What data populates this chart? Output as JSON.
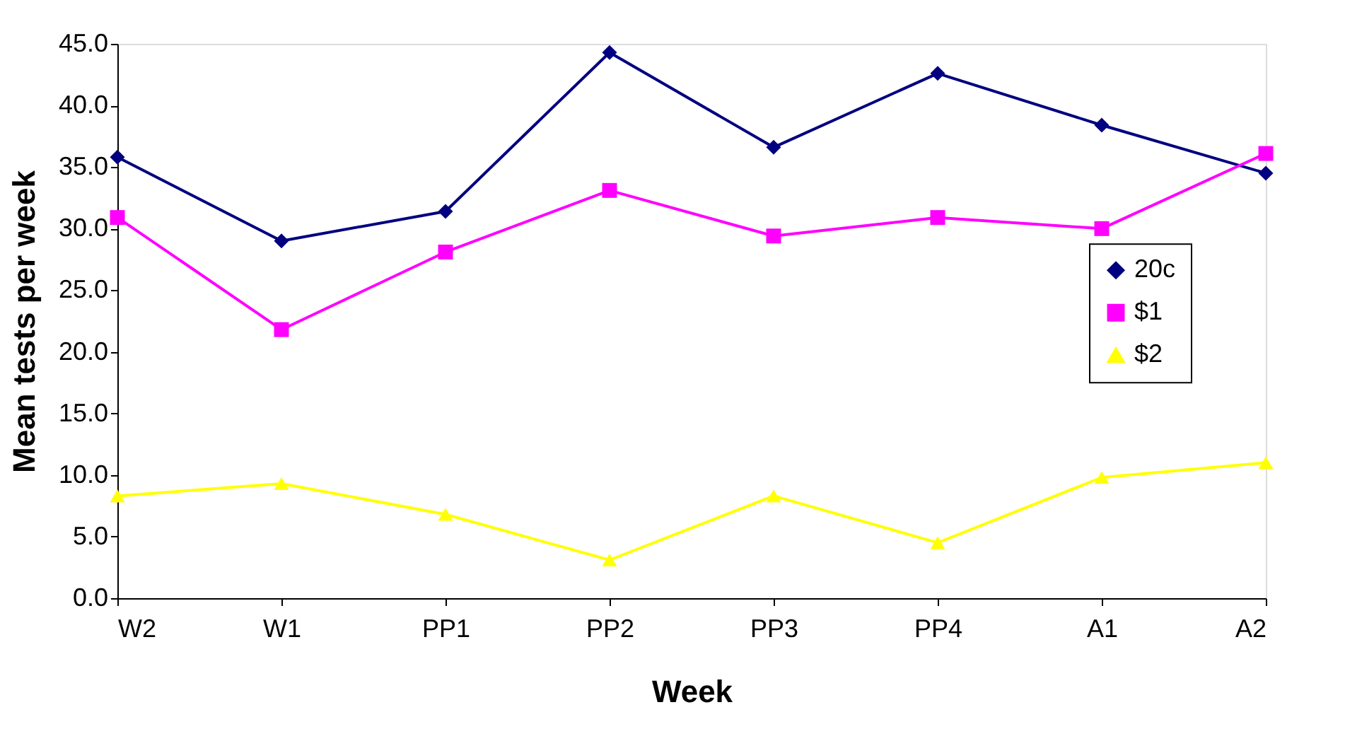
{
  "chart_data": {
    "type": "line",
    "xlabel": "Week",
    "ylabel": "Mean tests per week",
    "categories": [
      "W2",
      "W1",
      "PP1",
      "PP2",
      "PP3",
      "PP4",
      "A1",
      "A2"
    ],
    "series": [
      {
        "name": "20c",
        "color": "#000080",
        "marker": "diamond",
        "values": [
          35.8,
          29.0,
          31.4,
          44.3,
          36.6,
          42.6,
          38.4,
          34.5
        ]
      },
      {
        "name": "$1",
        "color": "#ff00ff",
        "marker": "square",
        "values": [
          30.9,
          21.8,
          28.1,
          33.1,
          29.4,
          30.9,
          30.0,
          36.1
        ]
      },
      {
        "name": "$2",
        "color": "#ffff00",
        "marker": "triangle",
        "values": [
          8.3,
          9.3,
          6.8,
          3.1,
          8.3,
          4.5,
          9.8,
          11.0
        ]
      }
    ],
    "ylim": [
      0,
      45
    ],
    "yticks": [
      {
        "value": 0,
        "label": "0.0"
      },
      {
        "value": 5,
        "label": "5.0"
      },
      {
        "value": 10,
        "label": "10.0"
      },
      {
        "value": 15,
        "label": "15.0"
      },
      {
        "value": 20,
        "label": "20.0"
      },
      {
        "value": 25,
        "label": "25.0"
      },
      {
        "value": 30,
        "label": "30.0"
      },
      {
        "value": 35,
        "label": "35.0"
      },
      {
        "value": 40,
        "label": "40.0"
      },
      {
        "value": 45,
        "label": "45.0"
      }
    ],
    "grid": false,
    "legend": "right",
    "line_style": "solid"
  }
}
